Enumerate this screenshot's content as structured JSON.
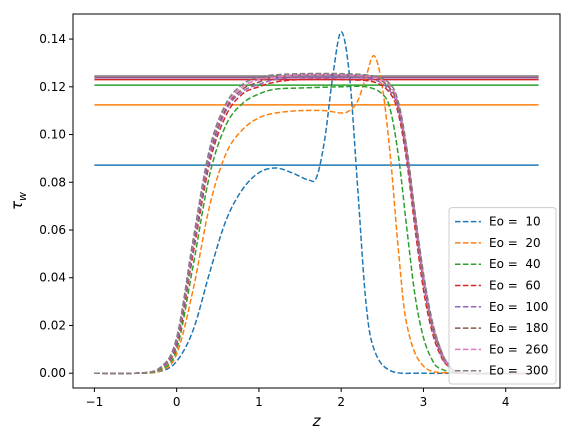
{
  "chart_data": {
    "type": "line",
    "title": "",
    "xlabel": "z",
    "ylabel": "τ_w",
    "xlim": [
      -1.26,
      4.66
    ],
    "ylim": [
      -0.0062,
      0.1505
    ],
    "xticks": [
      -1,
      0,
      1,
      2,
      3,
      4
    ],
    "xtick_labels": [
      "−1",
      "0",
      "1",
      "2",
      "3",
      "4"
    ],
    "yticks": [
      0.0,
      0.02,
      0.04,
      0.06,
      0.08,
      0.1,
      0.12,
      0.14
    ],
    "ytick_labels": [
      "0.00",
      "0.02",
      "0.04",
      "0.06",
      "0.08",
      "0.10",
      "0.12",
      "0.14"
    ],
    "grid": false,
    "legend_position": "lower-right",
    "reference_lines": [
      {
        "y": 0.0872,
        "color": "#1f77b4"
      },
      {
        "y": 0.1124,
        "color": "#ff7f0e"
      },
      {
        "y": 0.1207,
        "color": "#2ca02c"
      },
      {
        "y": 0.123,
        "color": "#d62728"
      },
      {
        "y": 0.1238,
        "color": "#9467bd"
      },
      {
        "y": 0.1242,
        "color": "#8c564b"
      },
      {
        "y": 0.1244,
        "color": "#e377c2"
      },
      {
        "y": 0.1245,
        "color": "#7f7f7f"
      }
    ],
    "series": [
      {
        "name": "Eo =  10",
        "color": "#1f77b4",
        "x": [
          -1.0,
          -0.5,
          -0.2,
          0.0,
          0.2,
          0.4,
          0.6,
          0.8,
          1.0,
          1.2,
          1.4,
          1.6,
          1.7,
          1.8,
          1.9,
          2.0,
          2.1,
          2.2,
          2.3,
          2.4,
          2.6,
          3.0,
          3.4,
          4.4
        ],
        "y": [
          0.0,
          0.0,
          0.0008,
          0.005,
          0.018,
          0.042,
          0.064,
          0.077,
          0.084,
          0.086,
          0.084,
          0.081,
          0.082,
          0.098,
          0.125,
          0.143,
          0.125,
          0.078,
          0.03,
          0.01,
          0.001,
          0.0,
          0.0,
          0.0
        ]
      },
      {
        "name": "Eo =  20",
        "color": "#ff7f0e",
        "x": [
          -1.0,
          -0.5,
          -0.2,
          0.0,
          0.2,
          0.4,
          0.6,
          0.8,
          1.0,
          1.2,
          1.5,
          1.8,
          2.0,
          2.1,
          2.2,
          2.3,
          2.4,
          2.5,
          2.6,
          2.7,
          2.8,
          3.0,
          3.4,
          4.4
        ],
        "y": [
          0.0,
          0.0,
          0.001,
          0.008,
          0.035,
          0.07,
          0.092,
          0.102,
          0.107,
          0.109,
          0.11,
          0.11,
          0.109,
          0.11,
          0.114,
          0.124,
          0.133,
          0.12,
          0.09,
          0.05,
          0.02,
          0.003,
          0.0,
          0.0
        ]
      },
      {
        "name": "Eo =  40",
        "color": "#2ca02c",
        "x": [
          -1.0,
          -0.5,
          -0.2,
          0.0,
          0.2,
          0.4,
          0.6,
          0.8,
          1.0,
          1.2,
          1.5,
          2.0,
          2.3,
          2.5,
          2.6,
          2.7,
          2.8,
          2.9,
          3.0,
          3.1,
          3.2,
          3.5,
          4.4
        ],
        "y": [
          0.0,
          0.0,
          0.0015,
          0.01,
          0.045,
          0.083,
          0.104,
          0.113,
          0.117,
          0.119,
          0.1195,
          0.12,
          0.12,
          0.117,
          0.11,
          0.09,
          0.06,
          0.032,
          0.015,
          0.006,
          0.002,
          0.0,
          0.0
        ]
      },
      {
        "name": "Eo =  60",
        "color": "#d62728",
        "x": [
          -1.0,
          -0.5,
          -0.2,
          0.0,
          0.2,
          0.4,
          0.6,
          0.8,
          1.0,
          1.2,
          1.5,
          2.0,
          2.4,
          2.6,
          2.7,
          2.8,
          2.9,
          3.0,
          3.1,
          3.2,
          3.3,
          3.5,
          4.4
        ],
        "y": [
          0.0,
          0.0,
          0.002,
          0.012,
          0.05,
          0.088,
          0.108,
          0.117,
          0.12,
          0.122,
          0.123,
          0.123,
          0.122,
          0.117,
          0.108,
          0.088,
          0.06,
          0.035,
          0.018,
          0.008,
          0.003,
          0.0,
          0.0
        ]
      },
      {
        "name": "Eo =  100",
        "color": "#9467bd",
        "x": [
          -1.0,
          -0.5,
          -0.2,
          0.0,
          0.2,
          0.4,
          0.6,
          0.8,
          1.0,
          1.2,
          1.5,
          2.0,
          2.4,
          2.6,
          2.7,
          2.8,
          2.9,
          3.0,
          3.1,
          3.2,
          3.3,
          3.5,
          4.4
        ],
        "y": [
          0.0,
          0.0,
          0.002,
          0.013,
          0.052,
          0.09,
          0.11,
          0.118,
          0.121,
          0.123,
          0.124,
          0.124,
          0.123,
          0.118,
          0.11,
          0.09,
          0.063,
          0.038,
          0.02,
          0.009,
          0.003,
          0.0,
          0.0
        ]
      },
      {
        "name": "Eo =  180",
        "color": "#8c564b",
        "x": [
          -1.0,
          -0.5,
          -0.2,
          0.0,
          0.2,
          0.4,
          0.6,
          0.8,
          1.0,
          1.2,
          1.5,
          2.0,
          2.4,
          2.6,
          2.7,
          2.8,
          2.9,
          3.0,
          3.1,
          3.2,
          3.3,
          3.5,
          4.4
        ],
        "y": [
          0.0,
          0.0,
          0.0022,
          0.014,
          0.054,
          0.092,
          0.111,
          0.119,
          0.122,
          0.124,
          0.125,
          0.125,
          0.124,
          0.119,
          0.111,
          0.092,
          0.065,
          0.04,
          0.021,
          0.01,
          0.004,
          0.0,
          0.0
        ]
      },
      {
        "name": "Eo =  260",
        "color": "#e377c2",
        "x": [
          -1.0,
          -0.5,
          -0.2,
          0.0,
          0.2,
          0.4,
          0.6,
          0.8,
          1.0,
          1.2,
          1.5,
          2.0,
          2.4,
          2.6,
          2.7,
          2.8,
          2.9,
          3.0,
          3.1,
          3.2,
          3.3,
          3.5,
          4.4
        ],
        "y": [
          0.0,
          0.0,
          0.0023,
          0.0145,
          0.055,
          0.093,
          0.112,
          0.12,
          0.123,
          0.124,
          0.125,
          0.125,
          0.124,
          0.12,
          0.112,
          0.093,
          0.066,
          0.041,
          0.022,
          0.011,
          0.004,
          0.0,
          0.0
        ]
      },
      {
        "name": "Eo =  300",
        "color": "#7f7f7f",
        "x": [
          -1.0,
          -0.5,
          -0.2,
          0.0,
          0.2,
          0.4,
          0.6,
          0.8,
          1.0,
          1.2,
          1.5,
          2.0,
          2.4,
          2.6,
          2.7,
          2.8,
          2.9,
          3.0,
          3.1,
          3.2,
          3.3,
          3.5,
          4.4
        ],
        "y": [
          0.0,
          0.0,
          0.0024,
          0.015,
          0.056,
          0.094,
          0.113,
          0.121,
          0.124,
          0.125,
          0.1255,
          0.1255,
          0.1245,
          0.121,
          0.113,
          0.094,
          0.067,
          0.042,
          0.023,
          0.011,
          0.004,
          0.0,
          0.0
        ]
      }
    ]
  }
}
